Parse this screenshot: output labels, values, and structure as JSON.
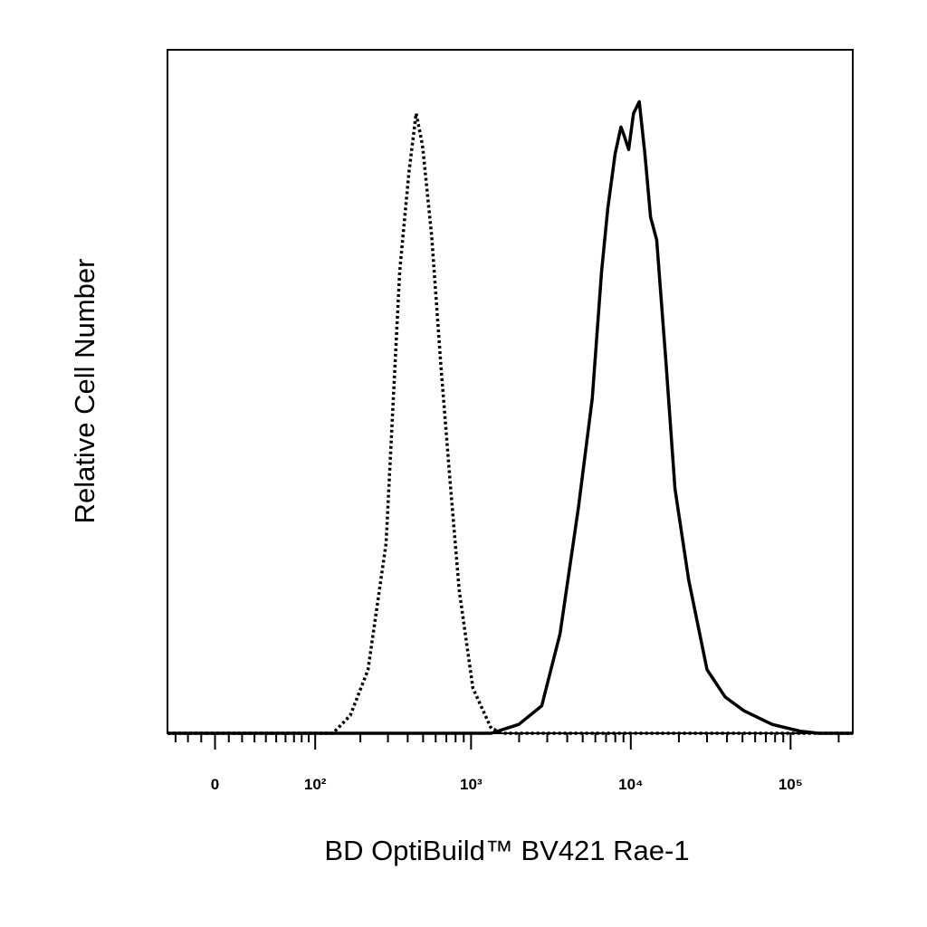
{
  "chart_data": {
    "type": "line",
    "x_label": "BD OptiBuild™ BV421 Rae-1",
    "y_label": "Relative Cell Number",
    "xscale": "biexponential",
    "xlim": [
      -37,
      245000
    ],
    "ylim": [
      0,
      100
    ],
    "xticks": [
      {
        "value": 0,
        "label": "0"
      },
      {
        "value": 100,
        "label": "10²"
      },
      {
        "value": 1000,
        "label": "10³"
      },
      {
        "value": 10000,
        "label": "10⁴"
      },
      {
        "value": 100000,
        "label": "10⁵"
      }
    ],
    "xminor_ticks": [
      -30,
      -20,
      -10,
      10,
      20,
      30,
      40,
      50,
      60,
      70,
      80,
      90,
      200,
      300,
      400,
      500,
      600,
      700,
      800,
      900,
      2000,
      3000,
      4000,
      5000,
      6000,
      7000,
      8000,
      9000,
      20000,
      30000,
      40000,
      50000,
      60000,
      70000,
      80000,
      90000,
      200000
    ],
    "series": [
      {
        "color": "#000000",
        "style": "dotted",
        "x": [
          -37,
          132,
          172,
          224,
          292,
          356,
          407,
          452,
          496,
          566,
          646,
          738,
          842,
          1027,
          1338,
          1632,
          245000
        ],
        "values": [
          0,
          0,
          2.6,
          9.3,
          27.8,
          67.5,
          82,
          90.7,
          86,
          72.8,
          54,
          37,
          21,
          6.6,
          0.7,
          0,
          0
        ]
      },
      {
        "color": "#000000",
        "style": "solid",
        "x": [
          -37,
          1338,
          1990,
          2770,
          3610,
          4700,
          5740,
          6560,
          7180,
          7980,
          8680,
          9100,
          9700,
          10400,
          11300,
          12250,
          13300,
          14520,
          16600,
          18900,
          23000,
          30000,
          39000,
          51000,
          76600,
          115000,
          150000,
          245000
        ],
        "values": [
          0,
          0,
          1.3,
          4,
          14.6,
          33,
          49,
          67.5,
          76.8,
          84.8,
          88.7,
          87.4,
          85.4,
          90.7,
          92.4,
          84.8,
          75.5,
          72.2,
          54.3,
          35.8,
          22.5,
          9.3,
          5.3,
          3.3,
          1.3,
          0.3,
          0,
          0
        ]
      }
    ]
  }
}
